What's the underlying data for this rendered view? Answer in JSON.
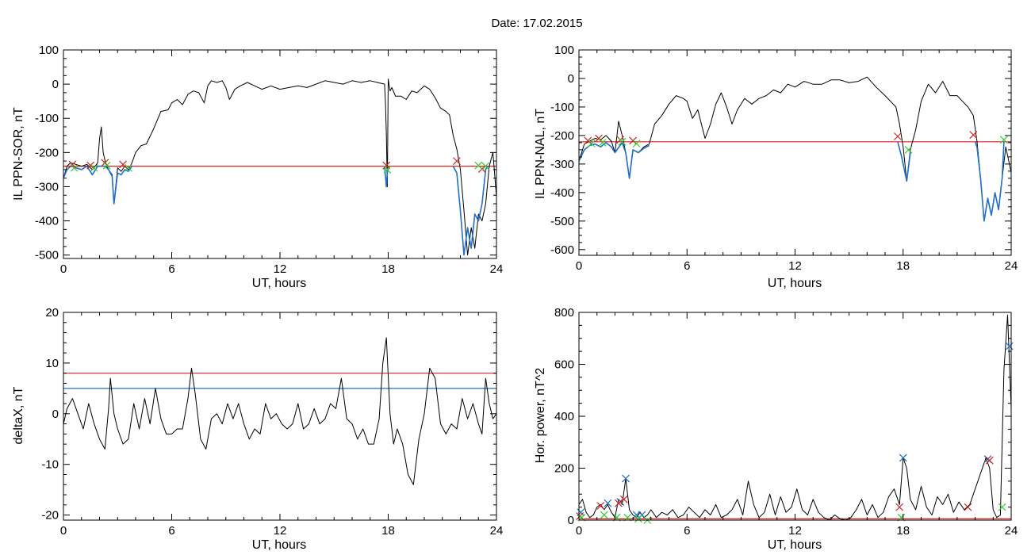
{
  "title": "Date:  17.02.2015",
  "colors": {
    "black": "#000000",
    "red": "#d62020",
    "blue": "#1f6fc8",
    "green": "#33cc33",
    "navy": "#1010a0"
  },
  "chart_data": [
    {
      "id": "sor",
      "type": "line",
      "xlabel": "UT, hours",
      "ylabel": "IL PPN-SOR, nT",
      "xlim": [
        0,
        24
      ],
      "ylim": [
        -510,
        100
      ],
      "xticks": [
        0,
        6,
        12,
        18,
        24
      ],
      "yticks": [
        100,
        0,
        -100,
        -200,
        -300,
        -400,
        -500
      ],
      "threshold": {
        "value": -240,
        "color": "#d62020"
      },
      "series": [
        {
          "color": "#000000",
          "x": [
            0,
            0.2,
            0.4,
            0.7,
            1.0,
            1.3,
            1.6,
            1.9,
            2.0,
            2.1,
            2.2,
            2.35,
            2.5,
            2.7,
            2.8,
            3.0,
            3.2,
            3.4,
            3.6,
            3.8,
            4.0,
            4.3,
            4.6,
            5.0,
            5.4,
            5.8,
            6.0,
            6.3,
            6.6,
            6.9,
            7.2,
            7.5,
            7.8,
            8.0,
            8.2,
            8.5,
            8.8,
            9.0,
            9.2,
            9.5,
            9.8,
            10.2,
            10.6,
            11.0,
            11.5,
            12.0,
            12.5,
            13.0,
            13.5,
            14.0,
            14.5,
            15.0,
            15.5,
            16.0,
            16.5,
            17.0,
            17.4,
            17.8,
            17.85,
            17.9,
            17.95,
            18.0,
            18.1,
            18.2,
            18.4,
            18.7,
            19.0,
            19.3,
            19.6,
            20.0,
            20.3,
            20.6,
            20.9,
            21.2,
            21.4,
            21.6,
            21.8,
            22.0,
            22.2,
            22.4,
            22.6,
            22.8,
            23.0,
            23.2,
            23.4,
            23.6,
            23.8,
            24.0
          ],
          "y": [
            -275,
            -240,
            -230,
            -235,
            -240,
            -235,
            -250,
            -230,
            -160,
            -125,
            -200,
            -235,
            -250,
            -265,
            -350,
            -245,
            -255,
            -240,
            -250,
            -230,
            -200,
            -180,
            -175,
            -130,
            -80,
            -75,
            -55,
            -45,
            -60,
            -30,
            -20,
            -25,
            -55,
            -5,
            10,
            5,
            10,
            -10,
            -45,
            -15,
            -5,
            5,
            -5,
            -15,
            -5,
            -15,
            -10,
            -5,
            -10,
            0,
            10,
            5,
            0,
            10,
            5,
            10,
            5,
            0,
            -60,
            -150,
            -300,
            15,
            -20,
            -10,
            -35,
            -35,
            -45,
            -20,
            -25,
            -5,
            -15,
            -40,
            -70,
            -80,
            -90,
            -150,
            -190,
            -250,
            -370,
            -500,
            -420,
            -480,
            -380,
            -400,
            -350,
            -240,
            -200,
            -330
          ]
        },
        {
          "color": "#1f6fc8",
          "x": [
            0,
            0.2,
            0.4,
            0.7,
            1.0,
            1.3,
            1.6,
            1.9,
            2.3,
            2.5,
            2.7,
            2.8,
            3.0,
            3.2,
            3.4,
            3.6,
            3.8
          ],
          "y": [
            -275,
            -250,
            -240,
            -245,
            -250,
            -240,
            -265,
            -240,
            -240,
            -250,
            -270,
            -350,
            -260,
            -265,
            -250,
            -255,
            -240
          ]
        },
        {
          "color": "#1f6fc8",
          "x": [
            17.8,
            17.85,
            17.9,
            17.95,
            18.0
          ],
          "y": [
            -240,
            -270,
            -300,
            -260,
            -240
          ]
        },
        {
          "color": "#1f6fc8",
          "x": [
            21.6,
            21.8,
            22.0,
            22.2,
            22.4,
            22.6,
            22.8,
            23.0,
            23.2,
            23.4,
            23.5
          ],
          "y": [
            -240,
            -260,
            -370,
            -500,
            -420,
            -480,
            -380,
            -400,
            -350,
            -250,
            -240
          ]
        }
      ],
      "markers": [
        {
          "color": "#d62020",
          "x": [
            0.5,
            1.5,
            2.3,
            3.3,
            17.9,
            21.8,
            23.2
          ],
          "y": [
            -235,
            -238,
            -230,
            -235,
            -238,
            -225,
            -248
          ]
        },
        {
          "color": "#33cc33",
          "x": [
            0.6,
            1.7,
            2.4,
            3.6,
            17.95,
            23.0,
            23.4
          ],
          "y": [
            -245,
            -245,
            -238,
            -245,
            -250,
            -238,
            -240
          ]
        }
      ]
    },
    {
      "id": "nal",
      "type": "line",
      "xlabel": "UT, hours",
      "ylabel": "IL PPN-NAL, nT",
      "xlim": [
        0,
        24
      ],
      "ylim": [
        -620,
        100
      ],
      "xticks": [
        0,
        6,
        12,
        18,
        24
      ],
      "yticks": [
        100,
        0,
        -100,
        -200,
        -300,
        -400,
        -500,
        -600
      ],
      "threshold": {
        "value": -222,
        "color": "#d62020"
      },
      "series": [
        {
          "color": "#000000",
          "x": [
            0,
            0.3,
            0.6,
            0.9,
            1.2,
            1.5,
            1.8,
            2.0,
            2.2,
            2.4,
            2.6,
            2.8,
            3.0,
            3.3,
            3.6,
            3.9,
            4.2,
            4.6,
            5.0,
            5.4,
            5.8,
            6.0,
            6.3,
            6.6,
            6.8,
            7.0,
            7.3,
            7.6,
            7.9,
            8.2,
            8.5,
            8.8,
            9.2,
            9.6,
            10.0,
            10.4,
            10.8,
            11.2,
            11.6,
            12.0,
            12.5,
            13.0,
            13.5,
            14.0,
            14.5,
            15.0,
            15.5,
            16.0,
            16.5,
            17.0,
            17.3,
            17.6,
            17.8,
            18.0,
            18.2,
            18.4,
            18.7,
            19.0,
            19.4,
            19.8,
            20.2,
            20.6,
            21.0,
            21.3,
            21.6,
            21.9,
            22.1,
            22.3,
            22.5,
            22.7,
            22.9,
            23.1,
            23.3,
            23.5,
            23.7,
            24.0
          ],
          "y": [
            -290,
            -230,
            -220,
            -210,
            -215,
            -200,
            -220,
            -260,
            -150,
            -200,
            -260,
            -350,
            -250,
            -260,
            -240,
            -230,
            -160,
            -130,
            -90,
            -60,
            -70,
            -80,
            -140,
            -110,
            -160,
            -210,
            -160,
            -90,
            -50,
            -100,
            -160,
            -110,
            -70,
            -90,
            -70,
            -60,
            -40,
            -50,
            -20,
            -30,
            -10,
            -20,
            -20,
            -5,
            -5,
            -15,
            -10,
            5,
            -30,
            -60,
            -80,
            -100,
            -160,
            -240,
            -360,
            -250,
            -180,
            -80,
            -20,
            -50,
            -10,
            -60,
            -60,
            -80,
            -100,
            -130,
            -220,
            -350,
            -500,
            -420,
            -480,
            -400,
            -460,
            -350,
            -240,
            -330
          ]
        },
        {
          "color": "#1f6fc8",
          "x": [
            0,
            0.3,
            0.6,
            0.9,
            1.2,
            1.5,
            1.8,
            2.0,
            2.4,
            2.6,
            2.8,
            3.0,
            3.3,
            3.6,
            3.9
          ],
          "y": [
            -290,
            -250,
            -235,
            -230,
            -240,
            -225,
            -240,
            -260,
            -225,
            -260,
            -350,
            -250,
            -260,
            -245,
            -235
          ]
        },
        {
          "color": "#1f6fc8",
          "x": [
            17.7,
            17.9,
            18.0,
            18.2,
            18.4
          ],
          "y": [
            -222,
            -270,
            -300,
            -360,
            -260
          ]
        },
        {
          "color": "#1f6fc8",
          "x": [
            22.0,
            22.1,
            22.3,
            22.5,
            22.7,
            22.9,
            23.1,
            23.3,
            23.5,
            23.6
          ],
          "y": [
            -222,
            -240,
            -350,
            -500,
            -420,
            -480,
            -400,
            -460,
            -350,
            -222
          ]
        }
      ],
      "markers": [
        {
          "color": "#d62020",
          "x": [
            0.5,
            1.1,
            2.3,
            3.0,
            17.7,
            21.9
          ],
          "y": [
            -218,
            -210,
            -215,
            -218,
            -203,
            -198
          ]
        },
        {
          "color": "#33cc33",
          "x": [
            0.7,
            1.3,
            2.4,
            3.2,
            18.3,
            23.6
          ],
          "y": [
            -228,
            -225,
            -222,
            -228,
            -250,
            -215
          ]
        }
      ]
    },
    {
      "id": "deltax",
      "type": "line",
      "xlabel": "UT, hours",
      "ylabel": "deltaX, nT",
      "xlim": [
        0,
        24
      ],
      "ylim": [
        -21,
        20
      ],
      "xticks": [
        0,
        6,
        12,
        18,
        24
      ],
      "yticks": [
        20,
        10,
        0,
        -10,
        -20
      ],
      "hlines": [
        {
          "value": 8,
          "color": "#d62020"
        },
        {
          "value": 5,
          "color": "#1f6fc8"
        }
      ],
      "series": [
        {
          "color": "#000000",
          "x": [
            0,
            0.2,
            0.5,
            0.8,
            1.1,
            1.4,
            1.7,
            2.0,
            2.3,
            2.5,
            2.6,
            2.8,
            3.0,
            3.3,
            3.6,
            3.9,
            4.2,
            4.5,
            4.8,
            5.1,
            5.4,
            5.7,
            6.0,
            6.3,
            6.6,
            6.9,
            7.1,
            7.3,
            7.6,
            7.9,
            8.2,
            8.5,
            8.8,
            9.1,
            9.4,
            9.7,
            10.0,
            10.3,
            10.6,
            10.9,
            11.2,
            11.5,
            11.8,
            12.1,
            12.4,
            12.7,
            13.0,
            13.3,
            13.6,
            13.9,
            14.2,
            14.5,
            14.8,
            15.1,
            15.4,
            15.7,
            16.0,
            16.3,
            16.6,
            16.9,
            17.2,
            17.5,
            17.7,
            17.9,
            18.1,
            18.3,
            18.5,
            18.8,
            19.1,
            19.4,
            19.7,
            20.0,
            20.3,
            20.6,
            20.9,
            21.2,
            21.5,
            21.8,
            22.1,
            22.4,
            22.7,
            23.0,
            23.2,
            23.4,
            23.6,
            23.8,
            24.0
          ],
          "y": [
            -2,
            1,
            3,
            0,
            -3,
            2,
            -2,
            -5,
            -7,
            1,
            7,
            0,
            -3,
            -6,
            -5,
            2,
            -3,
            3,
            -2,
            5,
            -1,
            -4,
            -4,
            -3,
            -3,
            3,
            9,
            4,
            -5,
            -7,
            -1,
            0,
            -2,
            2,
            -1,
            2,
            -2,
            -5,
            -3,
            -4,
            2,
            -1,
            0,
            -2,
            -3,
            -2,
            2,
            -3,
            -2,
            1,
            -2,
            -1,
            2,
            1,
            7,
            -1,
            -2,
            -5,
            -3,
            -6,
            -6,
            -1,
            10,
            15,
            0,
            -6,
            -3,
            -6,
            -12,
            -14,
            -5,
            0,
            9,
            7,
            -2,
            -4,
            -2,
            -3,
            3,
            -1,
            2,
            -2,
            -4,
            7,
            2,
            -1,
            0
          ]
        }
      ]
    },
    {
      "id": "power",
      "type": "line",
      "xlabel": "UT, hours",
      "ylabel": "Hor. power, nT^2",
      "xlim": [
        0,
        24
      ],
      "ylim": [
        0,
        800
      ],
      "xticks": [
        0,
        6,
        12,
        18,
        24
      ],
      "yticks": [
        0,
        200,
        400,
        600,
        800
      ],
      "threshold": {
        "value": 5,
        "color": "#d62020"
      },
      "series": [
        {
          "color": "#000000",
          "x": [
            0,
            0.2,
            0.4,
            0.6,
            0.8,
            1.0,
            1.2,
            1.4,
            1.6,
            1.8,
            2.0,
            2.2,
            2.4,
            2.6,
            2.7,
            2.8,
            3.0,
            3.2,
            3.4,
            3.6,
            3.8,
            4.0,
            4.3,
            4.6,
            4.9,
            5.2,
            5.5,
            5.8,
            6.1,
            6.4,
            6.7,
            7.0,
            7.3,
            7.6,
            7.9,
            8.2,
            8.5,
            8.8,
            9.1,
            9.4,
            9.7,
            10.0,
            10.3,
            10.6,
            10.9,
            11.2,
            11.5,
            11.8,
            12.1,
            12.4,
            12.7,
            13.0,
            13.3,
            13.6,
            13.9,
            14.2,
            14.5,
            14.8,
            15.1,
            15.4,
            15.7,
            16.0,
            16.3,
            16.6,
            16.9,
            17.2,
            17.5,
            17.8,
            18.0,
            18.2,
            18.4,
            18.7,
            19.0,
            19.3,
            19.6,
            19.9,
            20.2,
            20.5,
            20.8,
            21.1,
            21.4,
            21.7,
            22.0,
            22.3,
            22.6,
            22.8,
            23.0,
            23.2,
            23.4,
            23.6,
            23.8,
            24.0
          ],
          "y": [
            60,
            80,
            30,
            10,
            20,
            50,
            60,
            40,
            60,
            30,
            10,
            80,
            60,
            160,
            100,
            40,
            20,
            10,
            30,
            10,
            20,
            40,
            10,
            30,
            20,
            40,
            10,
            20,
            50,
            30,
            10,
            40,
            20,
            60,
            10,
            20,
            40,
            80,
            20,
            150,
            60,
            10,
            30,
            100,
            20,
            90,
            30,
            50,
            120,
            40,
            20,
            80,
            30,
            10,
            0,
            20,
            5,
            0,
            10,
            40,
            80,
            20,
            60,
            10,
            30,
            90,
            120,
            60,
            240,
            200,
            80,
            40,
            130,
            50,
            20,
            90,
            60,
            100,
            30,
            70,
            40,
            60,
            120,
            180,
            240,
            200,
            40,
            10,
            20,
            580,
            790,
            430
          ]
        }
      ],
      "markers": [
        {
          "color": "#1f6fc8",
          "x": [
            0.1,
            1.6,
            2.3,
            2.6,
            3.2,
            3.5,
            18.0,
            22.7,
            23.9
          ],
          "y": [
            30,
            65,
            70,
            160,
            20,
            20,
            240,
            235,
            670
          ]
        },
        {
          "color": "#d62020",
          "x": [
            0.05,
            1.2,
            2.2,
            2.5,
            17.8,
            21.6,
            22.8
          ],
          "y": [
            15,
            55,
            65,
            80,
            50,
            50,
            230
          ]
        },
        {
          "color": "#33cc33",
          "x": [
            0.15,
            1.4,
            2.1,
            2.7,
            3.3,
            3.8,
            17.9,
            23.5
          ],
          "y": [
            10,
            20,
            10,
            10,
            5,
            0,
            10,
            50
          ]
        }
      ]
    }
  ]
}
